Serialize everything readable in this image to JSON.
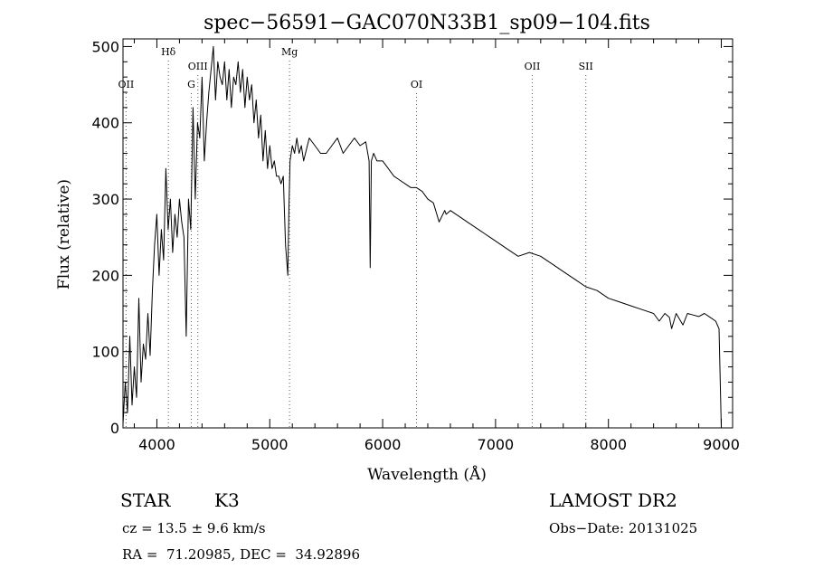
{
  "chart_data": {
    "type": "line",
    "title": "spec−56591−GAC070N33B1_sp09−104.fits",
    "xlabel": "Wavelength (Å)",
    "ylabel": "Flux (relative)",
    "xlim": [
      3700,
      9100
    ],
    "ylim": [
      0,
      510
    ],
    "xticks": [
      4000,
      5000,
      6000,
      7000,
      8000,
      9000
    ],
    "yticks": [
      0,
      100,
      200,
      300,
      400,
      500
    ],
    "grid": false,
    "series": [
      {
        "x": [
          3700,
          3720,
          3740,
          3760,
          3780,
          3800,
          3820,
          3840,
          3860,
          3880,
          3900,
          3920,
          3940,
          3960,
          3980,
          4000,
          4020,
          4040,
          4060,
          4080,
          4100,
          4120,
          4140,
          4160,
          4180,
          4200,
          4220,
          4240,
          4260,
          4280,
          4300,
          4320,
          4340,
          4360,
          4380,
          4400,
          4420,
          4440,
          4460,
          4480,
          4500,
          4520,
          4540,
          4560,
          4580,
          4600,
          4620,
          4640,
          4660,
          4680,
          4700,
          4720,
          4740,
          4760,
          4780,
          4800,
          4820,
          4840,
          4860,
          4880,
          4900,
          4920,
          4940,
          4960,
          4980,
          5000,
          5020,
          5040,
          5060,
          5080,
          5100,
          5120,
          5140,
          5160,
          5170,
          5180,
          5200,
          5220,
          5240,
          5260,
          5280,
          5300,
          5350,
          5400,
          5450,
          5500,
          5550,
          5600,
          5650,
          5700,
          5750,
          5800,
          5850,
          5880,
          5890,
          5900,
          5920,
          5950,
          6000,
          6050,
          6100,
          6150,
          6200,
          6250,
          6300,
          6350,
          6400,
          6450,
          6500,
          6550,
          6563,
          6600,
          6650,
          6700,
          6750,
          6800,
          6850,
          6900,
          6950,
          7000,
          7100,
          7200,
          7300,
          7400,
          7500,
          7600,
          7700,
          7800,
          7900,
          8000,
          8100,
          8200,
          8300,
          8400,
          8450,
          8500,
          8540,
          8560,
          8600,
          8640,
          8660,
          8700,
          8750,
          8800,
          8850,
          8900,
          8950,
          8980,
          9000
        ],
        "y": [
          5,
          60,
          20,
          120,
          30,
          80,
          40,
          170,
          60,
          110,
          90,
          150,
          95,
          180,
          240,
          280,
          200,
          260,
          220,
          340,
          260,
          300,
          230,
          280,
          250,
          300,
          270,
          250,
          120,
          300,
          260,
          420,
          300,
          400,
          380,
          460,
          350,
          400,
          440,
          470,
          500,
          430,
          480,
          460,
          450,
          480,
          430,
          470,
          420,
          460,
          450,
          480,
          440,
          470,
          420,
          460,
          430,
          450,
          400,
          430,
          380,
          410,
          350,
          390,
          340,
          370,
          340,
          350,
          330,
          330,
          320,
          330,
          240,
          200,
          290,
          350,
          370,
          360,
          380,
          360,
          370,
          350,
          380,
          370,
          360,
          360,
          370,
          380,
          360,
          370,
          380,
          370,
          375,
          350,
          210,
          350,
          360,
          350,
          350,
          340,
          330,
          325,
          320,
          315,
          315,
          310,
          300,
          295,
          270,
          285,
          280,
          285,
          280,
          275,
          270,
          265,
          260,
          255,
          250,
          245,
          235,
          225,
          230,
          225,
          215,
          205,
          195,
          185,
          180,
          170,
          165,
          160,
          155,
          150,
          140,
          150,
          145,
          130,
          150,
          140,
          135,
          150,
          148,
          146,
          150,
          145,
          140,
          130,
          0
        ]
      }
    ],
    "spectral_lines": [
      {
        "label": "OII",
        "wavelength": 3727,
        "row": 2
      },
      {
        "label": "Hδ",
        "wavelength": 4102,
        "row": 0
      },
      {
        "label": "G",
        "wavelength": 4305,
        "row": 2
      },
      {
        "label": "OIII",
        "wavelength": 4363,
        "row": 1
      },
      {
        "label": "Mg",
        "wavelength": 5175,
        "row": 0
      },
      {
        "label": "OI",
        "wavelength": 6300,
        "row": 2
      },
      {
        "label": "OII",
        "wavelength": 7325,
        "row": 1
      },
      {
        "label": "SII",
        "wavelength": 7800,
        "row": 1
      }
    ]
  },
  "info": {
    "class_label": "STAR",
    "subclass": "K3",
    "survey": "LAMOST DR2",
    "cz": "cz = 13.5 ± 9.6 km/s",
    "obs_date": "Obs−Date: 20131025",
    "coords": "RA =  71.20985, DEC =  34.92896"
  }
}
